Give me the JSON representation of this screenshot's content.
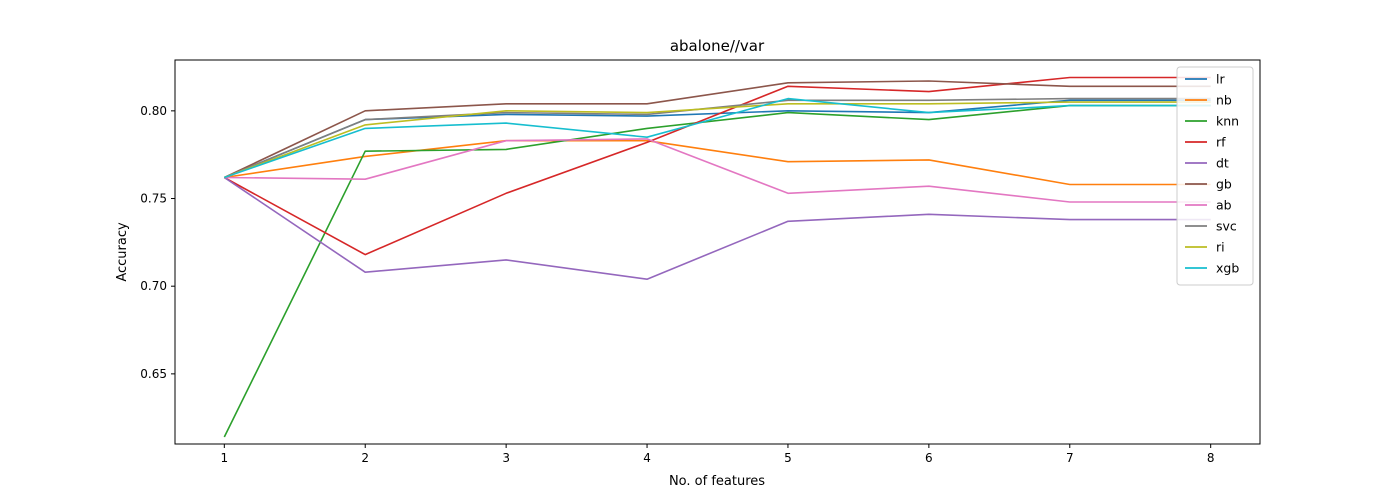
{
  "chart_data": {
    "type": "line",
    "title": "abalone//var",
    "xlabel": "No. of features",
    "ylabel": "Accuracy",
    "xlim": [
      0.65,
      8.35
    ],
    "ylim": [
      0.61,
      0.829
    ],
    "xticks": [
      1,
      2,
      3,
      4,
      5,
      6,
      7,
      8
    ],
    "yticks": [
      0.65,
      0.7,
      0.75,
      0.8
    ],
    "ytick_labels": [
      "0.65",
      "0.70",
      "0.75",
      "0.80"
    ],
    "grid": false,
    "legend_position": "top-right",
    "x": [
      1,
      2,
      3,
      4,
      5,
      6,
      7,
      8
    ],
    "series": [
      {
        "name": "lr",
        "color": "#1f77b4",
        "values": [
          0.762,
          0.795,
          0.798,
          0.797,
          0.8,
          0.799,
          0.806,
          0.806
        ]
      },
      {
        "name": "nb",
        "color": "#ff7f0e",
        "values": [
          0.762,
          0.774,
          0.783,
          0.783,
          0.771,
          0.772,
          0.758,
          0.758
        ]
      },
      {
        "name": "knn",
        "color": "#2ca02c",
        "values": [
          0.614,
          0.777,
          0.778,
          0.79,
          0.799,
          0.795,
          0.803,
          0.803
        ]
      },
      {
        "name": "rf",
        "color": "#d62728",
        "values": [
          0.762,
          0.718,
          0.753,
          0.782,
          0.814,
          0.811,
          0.819,
          0.819
        ]
      },
      {
        "name": "dt",
        "color": "#9467bd",
        "values": [
          0.762,
          0.708,
          0.715,
          0.704,
          0.737,
          0.741,
          0.738,
          0.738
        ]
      },
      {
        "name": "gb",
        "color": "#8c564b",
        "values": [
          0.762,
          0.8,
          0.804,
          0.804,
          0.816,
          0.817,
          0.814,
          0.814
        ]
      },
      {
        "name": "ab",
        "color": "#e377c2",
        "values": [
          0.762,
          0.761,
          0.783,
          0.784,
          0.753,
          0.757,
          0.748,
          0.748
        ]
      },
      {
        "name": "svc",
        "color": "#7f7f7f",
        "values": [
          0.762,
          0.795,
          0.799,
          0.798,
          0.806,
          0.806,
          0.807,
          0.807
        ]
      },
      {
        "name": "ri",
        "color": "#bcbd22",
        "values": [
          0.762,
          0.792,
          0.8,
          0.799,
          0.804,
          0.804,
          0.805,
          0.805
        ]
      },
      {
        "name": "xgb",
        "color": "#17becf",
        "values": [
          0.762,
          0.79,
          0.793,
          0.785,
          0.807,
          0.799,
          0.803,
          0.803
        ]
      }
    ]
  }
}
